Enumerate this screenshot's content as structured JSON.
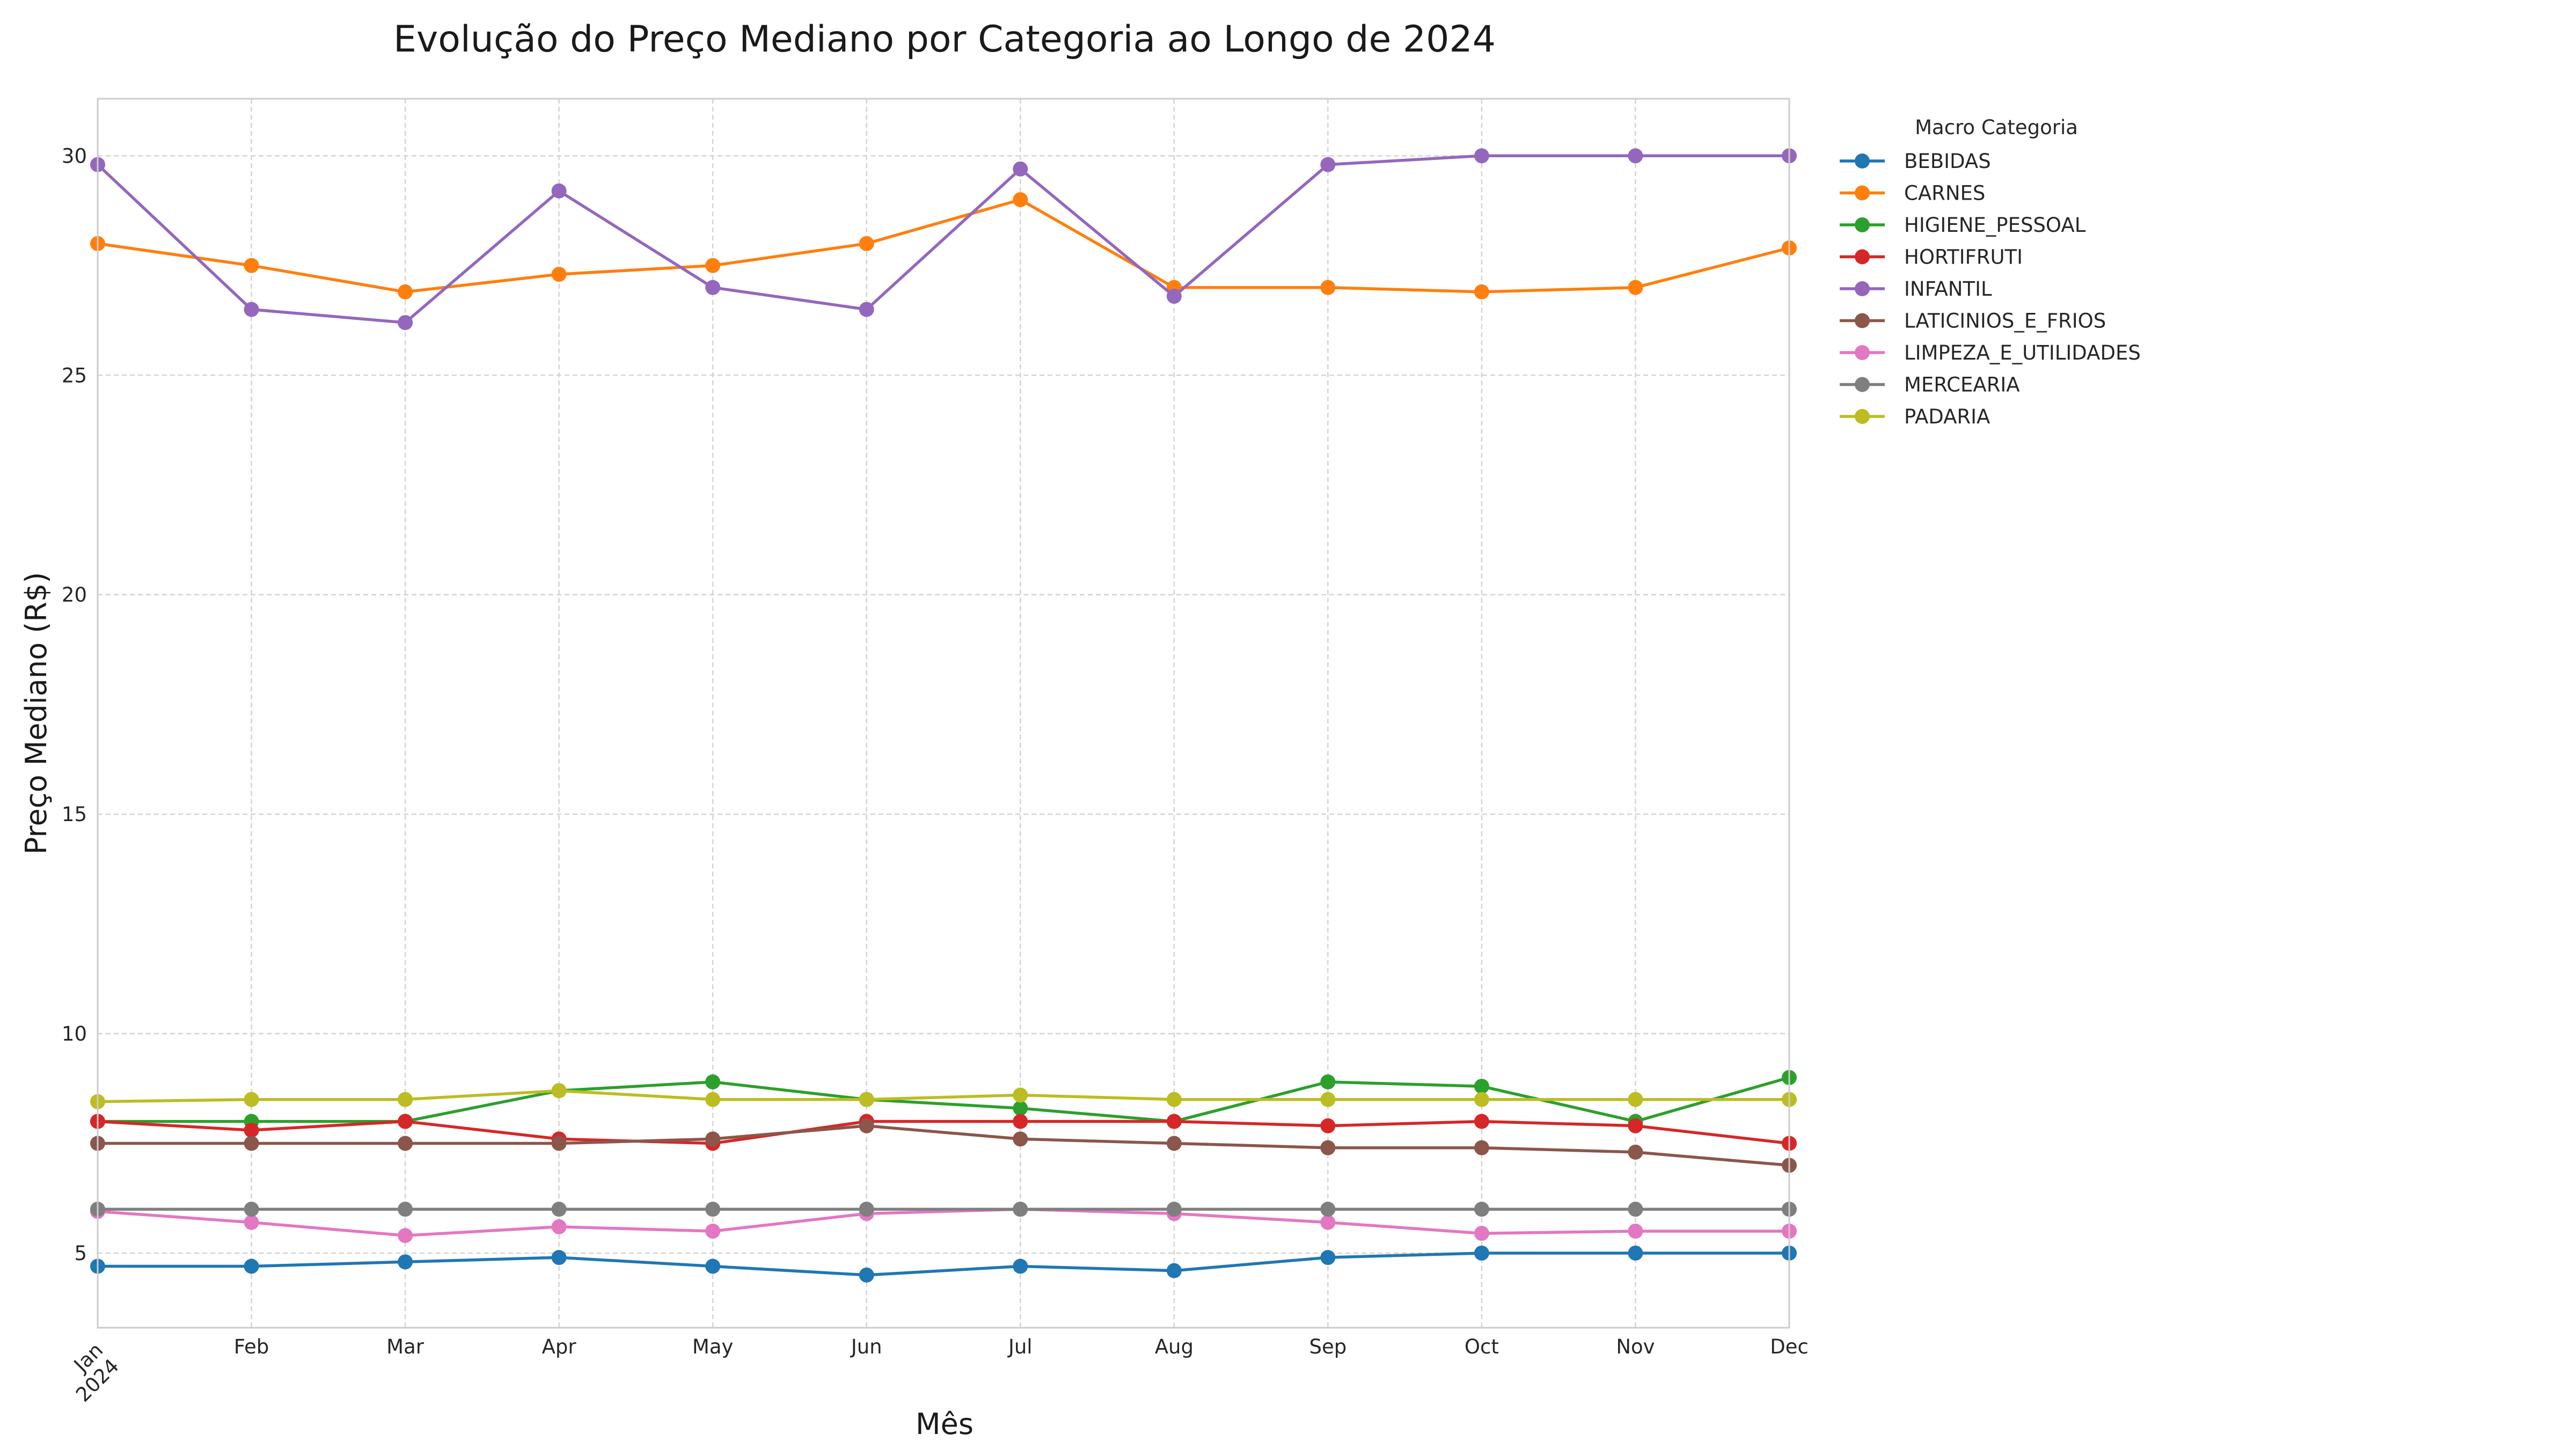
{
  "chart_data": {
    "type": "line",
    "title": "Evolução do Preço Mediano por Categoria ao Longo de 2024",
    "xlabel": "Mês",
    "ylabel": "Preço Mediano (R$)",
    "x_ticks": [
      "Jan\n2024",
      "Feb",
      "Mar",
      "Apr",
      "May",
      "Jun",
      "Jul",
      "Aug",
      "Sep",
      "Oct",
      "Nov",
      "Dec"
    ],
    "ylim": [
      3.3,
      31.3
    ],
    "y_ticks": [
      5,
      10,
      15,
      20,
      25,
      30
    ],
    "grid": true,
    "legend": {
      "title": "Macro Categoria",
      "placement": "outside-right-top"
    },
    "series": [
      {
        "name": "BEBIDAS",
        "color": "#1f77b4",
        "values": [
          4.7,
          4.7,
          4.8,
          4.9,
          4.7,
          4.5,
          4.7,
          4.6,
          4.9,
          5.0,
          5.0,
          5.0
        ]
      },
      {
        "name": "CARNES",
        "color": "#ff7f0e",
        "values": [
          28.0,
          27.5,
          26.9,
          27.3,
          27.5,
          28.0,
          29.0,
          27.0,
          27.0,
          26.9,
          27.0,
          27.9
        ]
      },
      {
        "name": "HIGIENE_PESSOAL",
        "color": "#2ca02c",
        "values": [
          8.0,
          8.0,
          8.0,
          8.7,
          8.9,
          8.5,
          8.3,
          8.0,
          8.9,
          8.8,
          8.0,
          9.0
        ]
      },
      {
        "name": "HORTIFRUTI",
        "color": "#d62728",
        "values": [
          8.0,
          7.8,
          8.0,
          7.6,
          7.5,
          8.0,
          8.0,
          8.0,
          7.9,
          8.0,
          7.9,
          7.5
        ]
      },
      {
        "name": "INFANTIL",
        "color": "#9467bd",
        "values": [
          29.8,
          26.5,
          26.2,
          29.2,
          27.0,
          26.5,
          29.7,
          26.8,
          29.8,
          30.0,
          30.0,
          30.0
        ]
      },
      {
        "name": "LATICINIOS_E_FRIOS",
        "color": "#8c564b",
        "values": [
          7.5,
          7.5,
          7.5,
          7.5,
          7.6,
          7.9,
          7.6,
          7.5,
          7.4,
          7.4,
          7.3,
          7.0
        ]
      },
      {
        "name": "LIMPEZA_E_UTILIDADES",
        "color": "#e377c2",
        "values": [
          5.95,
          5.7,
          5.4,
          5.6,
          5.5,
          5.9,
          6.0,
          5.9,
          5.7,
          5.45,
          5.5,
          5.5
        ]
      },
      {
        "name": "MERCEARIA",
        "color": "#7f7f7f",
        "values": [
          6.0,
          6.0,
          6.0,
          6.0,
          6.0,
          6.0,
          6.0,
          6.0,
          6.0,
          6.0,
          6.0,
          6.0
        ]
      },
      {
        "name": "PADARIA",
        "color": "#bcbd22",
        "values": [
          8.45,
          8.5,
          8.5,
          8.7,
          8.5,
          8.5,
          8.6,
          8.5,
          8.5,
          8.5,
          8.5,
          8.5
        ]
      }
    ]
  }
}
